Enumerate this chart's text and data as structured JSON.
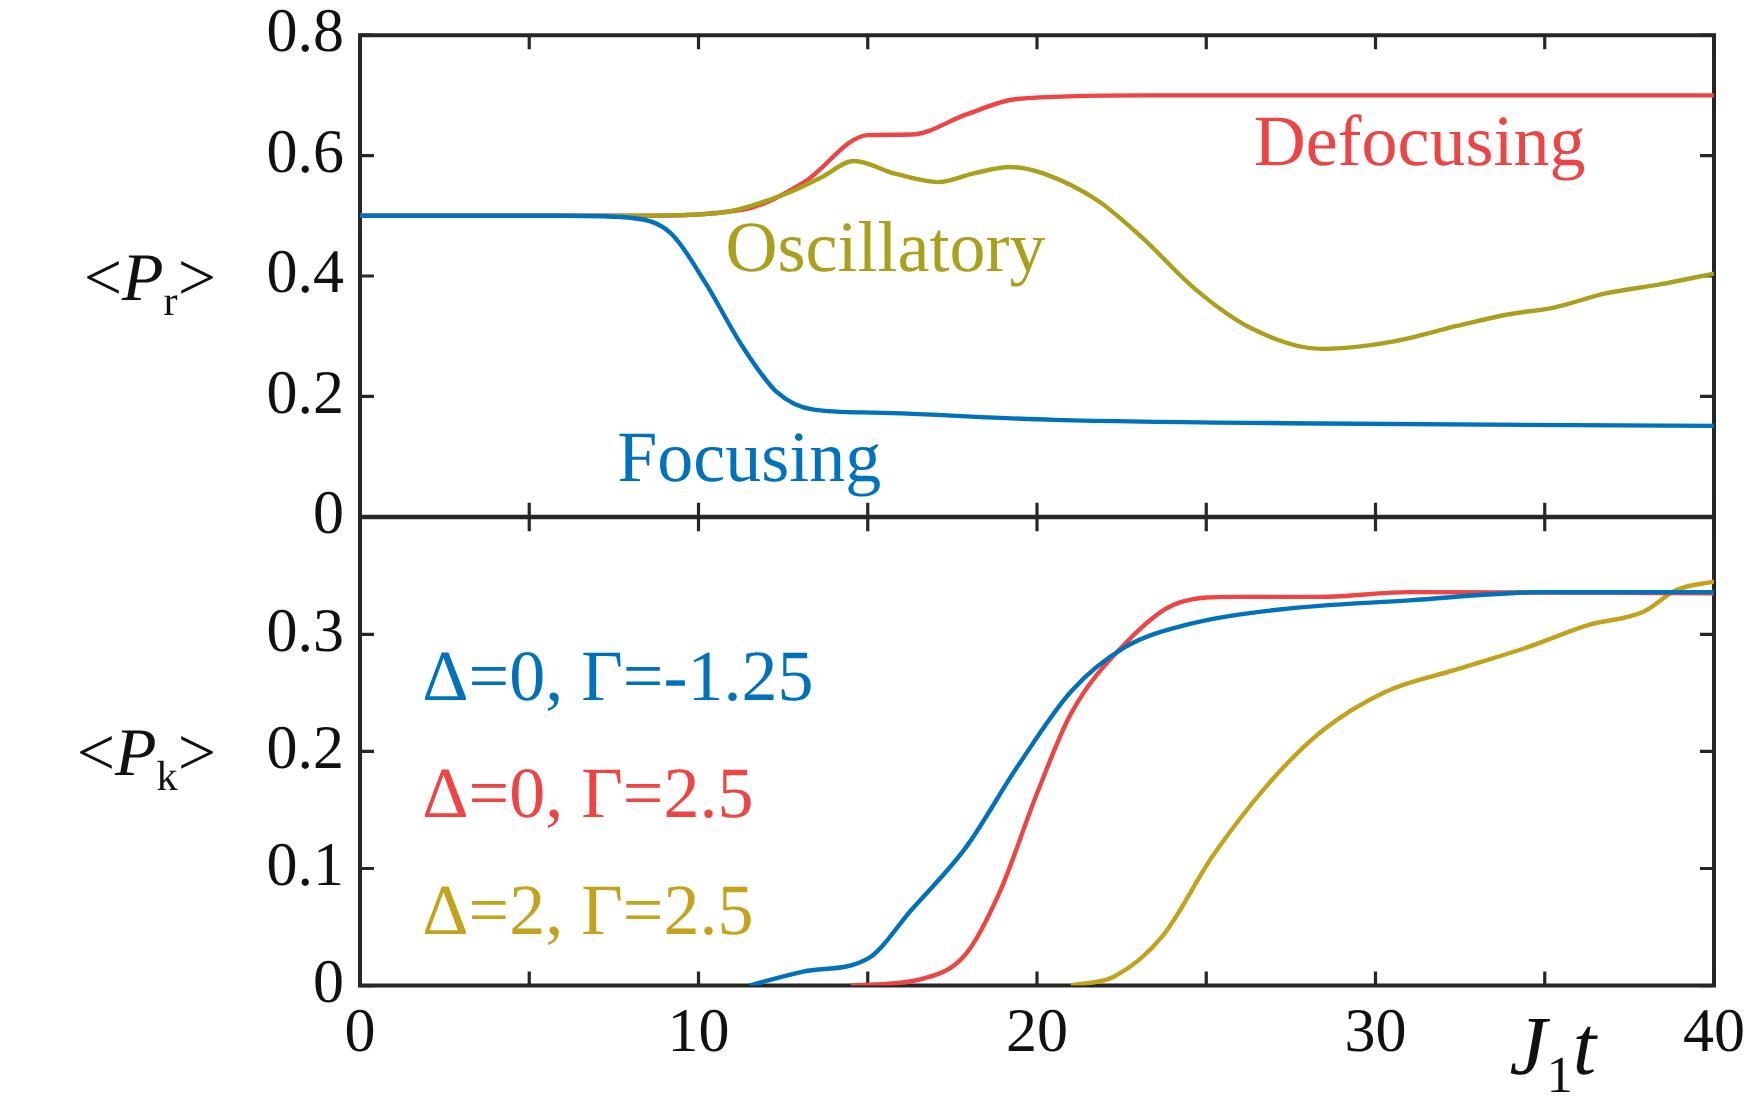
{
  "chart_data": [
    {
      "type": "line",
      "ylabel": "<P$_{r}$>",
      "xlim": [
        0,
        40
      ],
      "xticks": [
        0,
        {
          "value": 5,
          "label": null
        },
        10,
        {
          "value": 15,
          "label": null
        },
        20,
        {
          "value": 25,
          "label": null
        },
        30,
        {
          "value": 35,
          "label": null
        },
        40
      ],
      "ylim": [
        0,
        0.8
      ],
      "yticks": [
        0,
        0.2,
        0.4,
        0.6,
        0.8
      ],
      "tick_labels": "y",
      "grid": false,
      "legend": false,
      "series": [
        {
          "name": "Focusing",
          "color": "#0072bd",
          "x": [
            0,
            6,
            8.1,
            9.2,
            10.2,
            11.3,
            12.3,
            13.4,
            15.2,
            20.5,
            28.4,
            40
          ],
          "values": [
            0.5,
            0.5,
            0.496,
            0.47,
            0.389,
            0.283,
            0.208,
            0.178,
            0.173,
            0.161,
            0.155,
            0.151
          ]
        },
        {
          "name": "Oscillatory",
          "color": "#aaa01c",
          "x": [
            0,
            8,
            10.5,
            12.6,
            13.6,
            14.6,
            15.8,
            17.1,
            18.1,
            19.2,
            20.2,
            21.8,
            23.1,
            24.7,
            26.3,
            28.4,
            30.5,
            32.4,
            33.9,
            35.3,
            36.8,
            38.4,
            40
          ],
          "values": [
            0.5,
            0.5,
            0.504,
            0.537,
            0.563,
            0.591,
            0.57,
            0.556,
            0.57,
            0.581,
            0.57,
            0.525,
            0.464,
            0.377,
            0.314,
            0.279,
            0.291,
            0.317,
            0.336,
            0.348,
            0.371,
            0.386,
            0.404
          ]
        },
        {
          "name": "Defocusing",
          "color": "#ee4444",
          "x": [
            0,
            8,
            11.3,
            13.1,
            15,
            16.3,
            17.9,
            19.4,
            23.1,
            40
          ],
          "values": [
            0.5,
            0.5,
            0.51,
            0.555,
            0.634,
            0.635,
            0.668,
            0.694,
            0.7,
            0.7
          ]
        }
      ]
    },
    {
      "type": "line",
      "ylabel": "<P$_{k}$>",
      "xlabel": "J$_{1}$t",
      "xlim": [
        0,
        40
      ],
      "xticks": [
        0,
        {
          "value": 5,
          "label": null
        },
        10,
        {
          "value": 15,
          "label": null
        },
        20,
        {
          "value": 25,
          "label": null
        },
        30,
        {
          "value": 35,
          "label": null
        },
        40
      ],
      "ylim": [
        0,
        0.4
      ],
      "yticks": [
        0,
        0.1,
        0.2,
        0.3
      ],
      "grid": false,
      "legend": "left",
      "series": [
        {
          "name": "Δ=0, Γ=-1.25",
          "color": "#0072bd",
          "x": [
            11.5,
            13.1,
            15,
            16.3,
            17.9,
            19.4,
            21,
            22.6,
            24.4,
            27.1,
            31,
            35,
            40
          ],
          "values": [
            0,
            0.012,
            0.023,
            0.065,
            0.118,
            0.186,
            0.251,
            0.289,
            0.308,
            0.321,
            0.329,
            0.336,
            0.336
          ]
        },
        {
          "name": "Δ=0, Γ=2.5",
          "color": "#ee4444",
          "x": [
            14.5,
            16.5,
            17.9,
            18.9,
            20,
            21,
            22.6,
            24.2,
            25.8,
            28.4,
            31,
            40
          ],
          "values": [
            0,
            0.005,
            0.027,
            0.08,
            0.164,
            0.232,
            0.292,
            0.327,
            0.332,
            0.332,
            0.336,
            0.335
          ]
        },
        {
          "name": "Δ=2, Γ=2.5",
          "color": "#c4a31c",
          "x": [
            21,
            22.3,
            23.7,
            25.2,
            26.8,
            28.4,
            30.3,
            32.4,
            34.5,
            36.3,
            37.9,
            38.9,
            40
          ],
          "values": [
            0,
            0.008,
            0.042,
            0.111,
            0.171,
            0.217,
            0.251,
            0.27,
            0.289,
            0.308,
            0.319,
            0.338,
            0.345
          ]
        }
      ]
    }
  ]
}
